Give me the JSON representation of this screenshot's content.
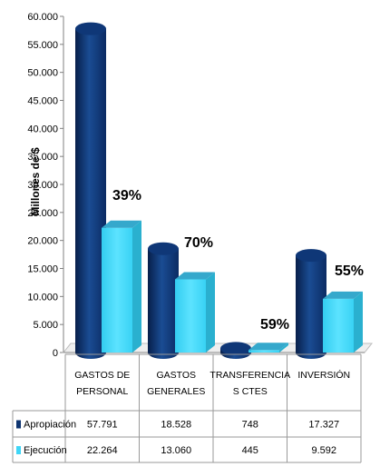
{
  "chart_data": {
    "type": "bar",
    "ylabel": "Millones de $",
    "ylim": [
      0,
      60000
    ],
    "yticks": [
      "0",
      "5.000",
      "10.000",
      "15.000",
      "20.000",
      "25.000",
      "30.000",
      "35.000",
      "40.000",
      "45.000",
      "50.000",
      "55.000",
      "60.000"
    ],
    "categories": [
      [
        "GASTOS DE",
        "PERSONAL"
      ],
      [
        "GASTOS",
        "GENERALES"
      ],
      [
        "TRANSFERENCIA",
        "S CTES"
      ],
      [
        "INVERSIÓN"
      ]
    ],
    "series": [
      {
        "name": "Apropiación",
        "color": "#0e3470",
        "values": [
          57791,
          18528,
          748,
          17327
        ],
        "labels": [
          "57.791",
          "18.528",
          "748",
          "17.327"
        ]
      },
      {
        "name": "Ejecución",
        "color": "#3fd6f7",
        "values": [
          22264,
          13060,
          445,
          9592
        ],
        "labels": [
          "22.264",
          "13.060",
          "445",
          "9.592"
        ]
      }
    ],
    "annotations": [
      "39%",
      "70%",
      "59%",
      "55%"
    ],
    "grid": false,
    "legend": "table-bottom-left"
  }
}
